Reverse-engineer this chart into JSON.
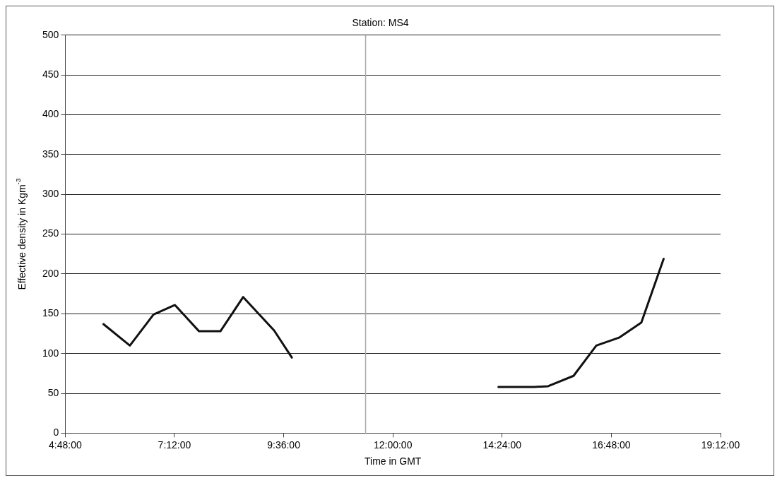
{
  "chart_data": {
    "type": "line",
    "title": "Station: MS4",
    "xlabel": "Time in GMT",
    "ylabel": "Effective density in Kgm$^{-3}$",
    "series": [
      {
        "color": "#111111",
        "x": [
          5.64,
          6.22,
          6.74,
          7.21,
          7.74,
          8.21,
          8.71,
          9.39,
          9.78
        ],
        "values": [
          137,
          110,
          149,
          161,
          128,
          128,
          171,
          129,
          95
        ]
      },
      {
        "color": "#111111",
        "x": [
          14.32,
          15.11,
          15.41,
          15.97,
          16.47,
          16.97,
          17.46,
          17.95
        ],
        "values": [
          58,
          58,
          59,
          72,
          110,
          120,
          139,
          219
        ]
      }
    ],
    "xlim": [
      4.8,
      19.2
    ],
    "xticks": [
      {
        "value": 4.8,
        "label": "4:48:00"
      },
      {
        "value": 7.2,
        "label": "7:12:00"
      },
      {
        "value": 9.6,
        "label": "9:36:00"
      },
      {
        "value": 12,
        "label": "12:00:00"
      },
      {
        "value": 14.4,
        "label": "14:24:00"
      },
      {
        "value": 16.8,
        "label": "16:48:00"
      },
      {
        "value": 19.2,
        "label": "19:12:00"
      }
    ],
    "ylim": [
      0,
      500
    ],
    "yticks": [
      0,
      50,
      100,
      150,
      200,
      250,
      300,
      350,
      400,
      450,
      500
    ],
    "ref_lines": [
      {
        "axis": "x",
        "value": 11.4,
        "color": "#aaaaaa"
      }
    ],
    "grid": "y",
    "legend": false
  }
}
